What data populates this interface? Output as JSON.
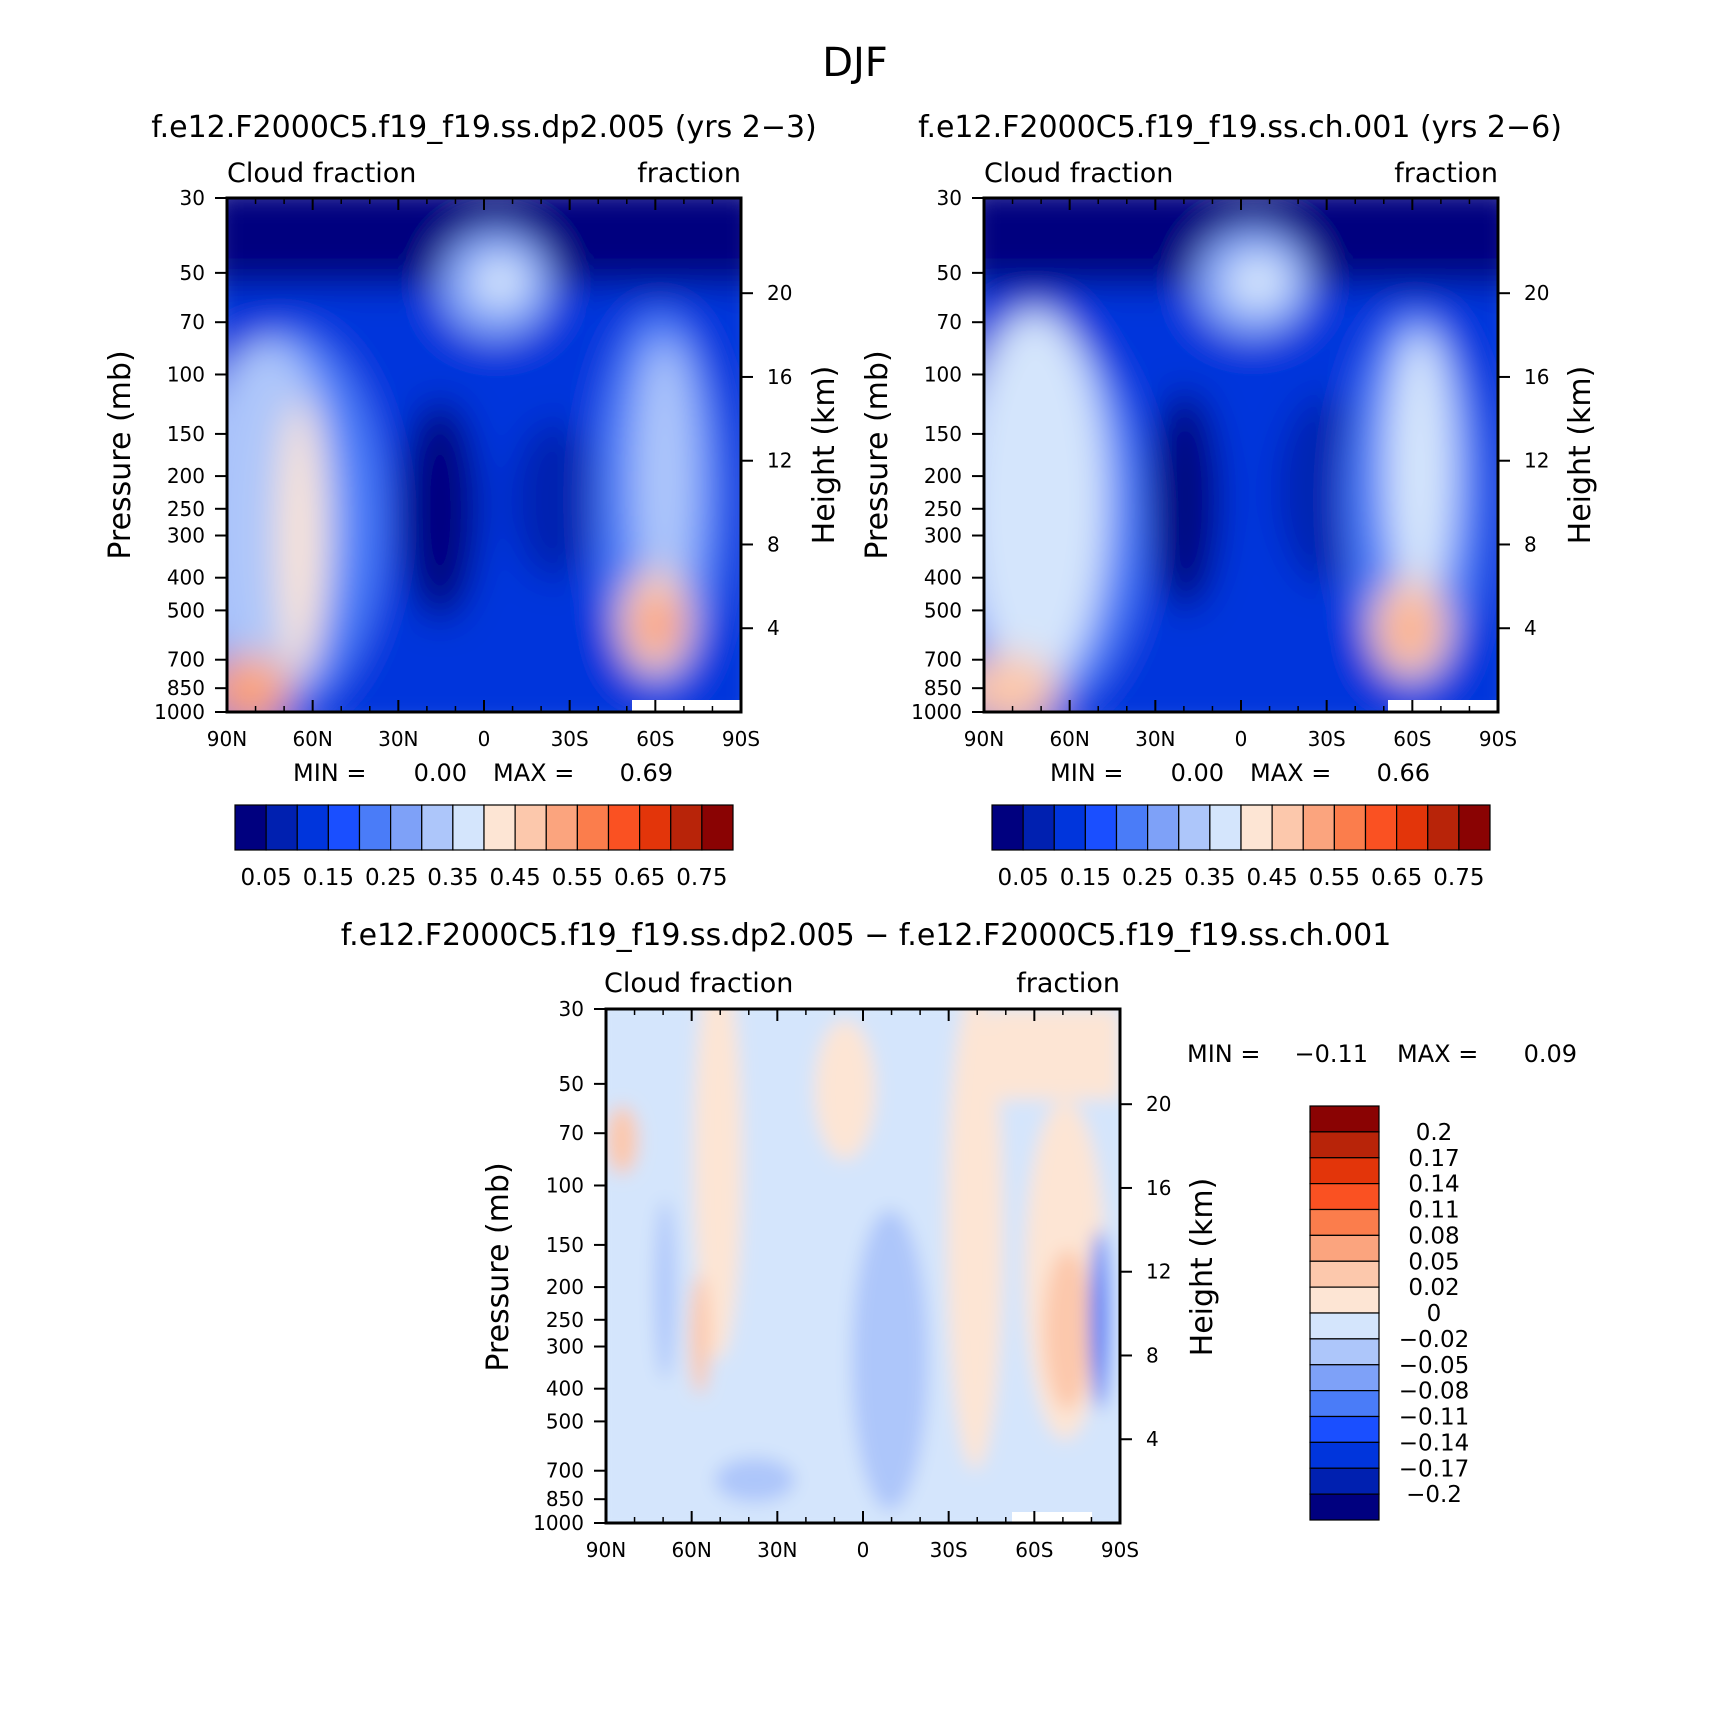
{
  "page_title": "DJF",
  "chart_data": [
    {
      "type": "heatmap",
      "title": "f.e12.F2000C5.f19_f19.ss.dp2.005 (yrs 2−3)",
      "left_string": "Cloud fraction",
      "right_string": "fraction",
      "ylabel": "Pressure (mb)",
      "ylabel_right": "Height (km)",
      "x_ticks": [
        "90N",
        "60N",
        "30N",
        "0",
        "30S",
        "60S",
        "90S"
      ],
      "y_ticks": [
        "30",
        "50",
        "70",
        "100",
        "150",
        "200",
        "250",
        "300",
        "400",
        "500",
        "700",
        "850",
        "1000"
      ],
      "y_right_ticks": [
        "20",
        "16",
        "12",
        "8",
        "4"
      ],
      "ylim": [
        1000,
        30
      ],
      "y_scale": "log",
      "min_label": "MIN =",
      "min_value": "0.00",
      "max_label": "MAX =",
      "max_value": "0.69",
      "colorbar_labels": [
        "0.05",
        "0.15",
        "0.25",
        "0.35",
        "0.45",
        "0.55",
        "0.65",
        "0.75"
      ],
      "colorbar_orientation": "horizontal",
      "colors": [
        "#00007f",
        "#0020b0",
        "#0035dc",
        "#1a4fff",
        "#4a7cf8",
        "#7ea1f8",
        "#adc6fa",
        "#d4e5fc",
        "#fde5d4",
        "#fcc8ac",
        "#fba47e",
        "#fb7d4c",
        "#fa5122",
        "#e3350a",
        "#b82409",
        "#8a0303"
      ]
    },
    {
      "type": "heatmap",
      "title": "f.e12.F2000C5.f19_f19.ss.ch.001 (yrs 2−6)",
      "left_string": "Cloud fraction",
      "right_string": "fraction",
      "ylabel": "Pressure (mb)",
      "ylabel_right": "Height (km)",
      "x_ticks": [
        "90N",
        "60N",
        "30N",
        "0",
        "30S",
        "60S",
        "90S"
      ],
      "y_ticks": [
        "30",
        "50",
        "70",
        "100",
        "150",
        "200",
        "250",
        "300",
        "400",
        "500",
        "700",
        "850",
        "1000"
      ],
      "y_right_ticks": [
        "20",
        "16",
        "12",
        "8",
        "4"
      ],
      "ylim": [
        1000,
        30
      ],
      "y_scale": "log",
      "min_label": "MIN =",
      "min_value": "0.00",
      "max_label": "MAX =",
      "max_value": "0.66",
      "colorbar_labels": [
        "0.05",
        "0.15",
        "0.25",
        "0.35",
        "0.45",
        "0.55",
        "0.65",
        "0.75"
      ],
      "colorbar_orientation": "horizontal",
      "colors": [
        "#00007f",
        "#0020b0",
        "#0035dc",
        "#1a4fff",
        "#4a7cf8",
        "#7ea1f8",
        "#adc6fa",
        "#d4e5fc",
        "#fde5d4",
        "#fcc8ac",
        "#fba47e",
        "#fb7d4c",
        "#fa5122",
        "#e3350a",
        "#b82409",
        "#8a0303"
      ]
    },
    {
      "type": "heatmap",
      "title": "f.e12.F2000C5.f19_f19.ss.dp2.005 − f.e12.F2000C5.f19_f19.ss.ch.001",
      "left_string": "Cloud fraction",
      "right_string": "fraction",
      "ylabel": "Pressure (mb)",
      "ylabel_right": "Height (km)",
      "x_ticks": [
        "90N",
        "60N",
        "30N",
        "0",
        "30S",
        "60S",
        "90S"
      ],
      "y_ticks": [
        "30",
        "50",
        "70",
        "100",
        "150",
        "200",
        "250",
        "300",
        "400",
        "500",
        "700",
        "850",
        "1000"
      ],
      "y_right_ticks": [
        "20",
        "16",
        "12",
        "8",
        "4"
      ],
      "ylim": [
        1000,
        30
      ],
      "y_scale": "log",
      "min_label": "MIN =",
      "min_value": "−0.11",
      "max_label": "MAX =",
      "max_value": "0.09",
      "colorbar_labels": [
        "0.2",
        "0.17",
        "0.14",
        "0.11",
        "0.08",
        "0.05",
        "0.02",
        "0",
        "−0.02",
        "−0.05",
        "−0.08",
        "−0.11",
        "−0.14",
        "−0.17",
        "−0.2"
      ],
      "colorbar_orientation": "vertical",
      "colors": [
        "#8a0303",
        "#b82409",
        "#e3350a",
        "#fa5122",
        "#fb7d4c",
        "#fba47e",
        "#fcc8ac",
        "#fde5d4",
        "#d4e5fc",
        "#adc6fa",
        "#7ea1f8",
        "#4a7cf8",
        "#1a4fff",
        "#0035dc",
        "#0020b0",
        "#00007f"
      ]
    }
  ]
}
